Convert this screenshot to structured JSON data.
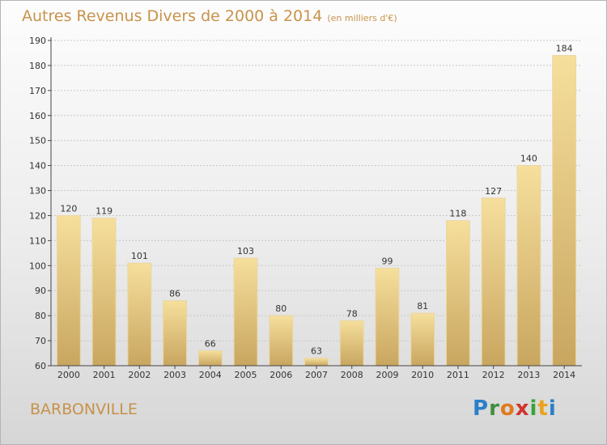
{
  "header": {
    "title": "Autres Revenus Divers de 2000 à 2014",
    "subtitle": "(en milliers d'€)"
  },
  "footer": {
    "commune": "BARBONVILLE",
    "brand_letters": [
      "P",
      "r",
      "o",
      "x",
      "i",
      "t",
      "i"
    ],
    "brand_colors": [
      "#2a7fc9",
      "#3f8f3f",
      "#e2791a",
      "#d0332c",
      "#3aa33a",
      "#e9a31c",
      "#2a7fc9"
    ]
  },
  "colors": {
    "title": "#c8924a",
    "bar_top": "#f6df9c",
    "bar_bottom": "#c8a660",
    "axis": "#444444",
    "grid": "#c8c8c8"
  },
  "chart_data": {
    "type": "bar",
    "categories": [
      "2000",
      "2001",
      "2002",
      "2003",
      "2004",
      "2005",
      "2006",
      "2007",
      "2008",
      "2009",
      "2010",
      "2011",
      "2012",
      "2013",
      "2014"
    ],
    "values": [
      120,
      119,
      101,
      86,
      66,
      103,
      80,
      63,
      78,
      99,
      81,
      118,
      127,
      140,
      184
    ],
    "title": "Autres Revenus Divers de 2000 à 2014",
    "xlabel": "",
    "ylabel": "",
    "ylim": [
      60,
      190
    ],
    "yticks": [
      60,
      70,
      80,
      90,
      100,
      110,
      120,
      130,
      140,
      150,
      160,
      170,
      180,
      190
    ],
    "grid": true
  }
}
